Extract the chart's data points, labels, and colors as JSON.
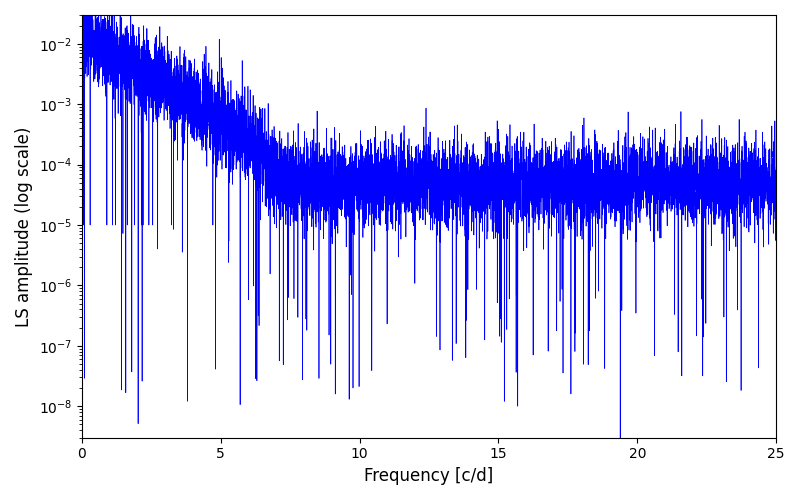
{
  "xlabel": "Frequency [c/d]",
  "ylabel": "LS amplitude (log scale)",
  "line_color": "#0000ff",
  "xlim": [
    0,
    25
  ],
  "ylim": [
    3e-09,
    0.03
  ],
  "background_color": "#ffffff",
  "n_points": 8000,
  "freq_max": 25.0,
  "seed": 7,
  "figsize": [
    8.0,
    5.0
  ],
  "dpi": 100
}
